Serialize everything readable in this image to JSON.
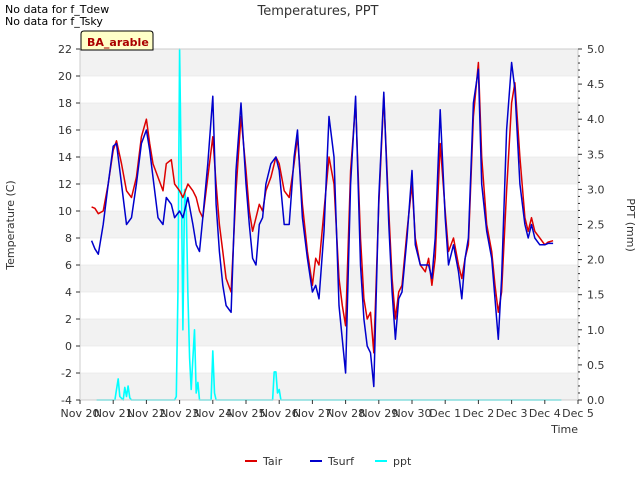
{
  "notes": [
    "No data for f_Tdew",
    "No data for f_Tsky"
  ],
  "chart_data": {
    "type": "line",
    "title": "Temperatures, PPT",
    "xlabel": "Time",
    "ylabel": "Temperature (C)",
    "y2label": "PPT (mm)",
    "site_label": "BA_arable",
    "xlim": [
      0,
      15
    ],
    "ylim": [
      -4,
      22
    ],
    "y2lim": [
      0,
      5
    ],
    "x_ticks": [
      "Nov 20",
      "Nov 21",
      "Nov 22",
      "Nov 23",
      "Nov 24",
      "Nov 25",
      "Nov 26",
      "Nov 27",
      "Nov 28",
      "Nov 29",
      "Nov 30",
      "Dec 1",
      "Dec 2",
      "Dec 3",
      "Dec 4",
      "Dec 5"
    ],
    "y_ticks": [
      -4,
      -2,
      0,
      2,
      4,
      6,
      8,
      10,
      12,
      14,
      16,
      18,
      20,
      22
    ],
    "y2_ticks": [
      "0.0",
      "0.5",
      "1.0",
      "1.5",
      "2.0",
      "2.5",
      "3.0",
      "3.5",
      "4.0",
      "4.5",
      "5.0"
    ],
    "legend": "bottom-center",
    "grid": "horizontal bands",
    "series": [
      {
        "name": "Tair",
        "color": "#dd0000",
        "axis": "left",
        "x": [
          0.35,
          0.45,
          0.55,
          0.7,
          0.85,
          1.0,
          1.1,
          1.25,
          1.4,
          1.55,
          1.7,
          1.85,
          2.0,
          2.1,
          2.2,
          2.35,
          2.5,
          2.6,
          2.75,
          2.85,
          3.0,
          3.1,
          3.25,
          3.4,
          3.5,
          3.6,
          3.7,
          3.85,
          4.0,
          4.1,
          4.2,
          4.3,
          4.4,
          4.55,
          4.7,
          4.85,
          5.0,
          5.1,
          5.2,
          5.3,
          5.4,
          5.5,
          5.6,
          5.75,
          5.9,
          6.0,
          6.15,
          6.3,
          6.45,
          6.55,
          6.7,
          6.85,
          7.0,
          7.1,
          7.2,
          7.35,
          7.5,
          7.65,
          7.8,
          7.9,
          8.0,
          8.15,
          8.3,
          8.45,
          8.55,
          8.65,
          8.75,
          8.85,
          9.0,
          9.15,
          9.3,
          9.4,
          9.5,
          9.6,
          9.7,
          9.85,
          10.0,
          10.1,
          10.25,
          10.4,
          10.5,
          10.6,
          10.7,
          10.85,
          11.0,
          11.1,
          11.25,
          11.4,
          11.5,
          11.6,
          11.7,
          11.85,
          12.0,
          12.1,
          12.25,
          12.4,
          12.5,
          12.6,
          12.7,
          12.85,
          13.0,
          13.1,
          13.25,
          13.4,
          13.5,
          13.6,
          13.7,
          13.85,
          14.0,
          14.1,
          14.25
        ],
        "y": [
          10.3,
          10.2,
          9.8,
          10.0,
          12.0,
          14.5,
          15.2,
          13.5,
          11.5,
          11.0,
          12.5,
          15.5,
          16.8,
          15.0,
          13.5,
          12.5,
          11.5,
          13.5,
          13.8,
          12.0,
          11.5,
          11.0,
          12.0,
          11.5,
          11.0,
          10.0,
          9.5,
          12.5,
          15.5,
          12.0,
          9.0,
          7.0,
          5.0,
          4.0,
          11.5,
          17.0,
          13.0,
          10.0,
          8.5,
          9.5,
          10.5,
          10.0,
          11.5,
          12.5,
          14.0,
          13.5,
          11.5,
          11.0,
          13.5,
          15.5,
          10.5,
          7.0,
          4.5,
          6.5,
          6.0,
          10.0,
          14.0,
          12.0,
          5.0,
          3.0,
          1.5,
          13.0,
          18.0,
          8.0,
          3.5,
          2.0,
          2.5,
          -0.5,
          10.5,
          18.5,
          10.0,
          5.0,
          2.0,
          4.0,
          4.5,
          8.5,
          12.0,
          8.0,
          6.0,
          5.5,
          6.5,
          4.5,
          6.5,
          15.0,
          10.0,
          7.0,
          8.0,
          6.0,
          5.0,
          6.5,
          7.5,
          17.0,
          21.0,
          14.0,
          9.0,
          7.0,
          4.5,
          2.5,
          4.0,
          11.5,
          18.0,
          19.5,
          14.0,
          9.5,
          8.5,
          9.5,
          8.5,
          8.0,
          7.5,
          7.7,
          7.8
        ]
      },
      {
        "name": "Tsurf",
        "color": "#0000cc",
        "axis": "left",
        "x": [
          0.35,
          0.45,
          0.55,
          0.7,
          0.85,
          1.0,
          1.1,
          1.25,
          1.4,
          1.55,
          1.7,
          1.85,
          2.0,
          2.1,
          2.2,
          2.35,
          2.5,
          2.6,
          2.75,
          2.85,
          3.0,
          3.1,
          3.25,
          3.4,
          3.5,
          3.6,
          3.7,
          3.85,
          4.0,
          4.1,
          4.2,
          4.3,
          4.4,
          4.55,
          4.7,
          4.85,
          5.0,
          5.1,
          5.2,
          5.3,
          5.4,
          5.5,
          5.6,
          5.75,
          5.9,
          6.0,
          6.15,
          6.3,
          6.45,
          6.55,
          6.7,
          6.85,
          7.0,
          7.1,
          7.2,
          7.35,
          7.5,
          7.65,
          7.8,
          7.9,
          8.0,
          8.15,
          8.3,
          8.45,
          8.55,
          8.65,
          8.75,
          8.85,
          9.0,
          9.15,
          9.3,
          9.4,
          9.5,
          9.6,
          9.7,
          9.85,
          10.0,
          10.1,
          10.25,
          10.4,
          10.5,
          10.6,
          10.7,
          10.85,
          11.0,
          11.1,
          11.25,
          11.4,
          11.5,
          11.6,
          11.7,
          11.85,
          12.0,
          12.1,
          12.25,
          12.4,
          12.5,
          12.6,
          12.7,
          12.85,
          13.0,
          13.1,
          13.25,
          13.4,
          13.5,
          13.6,
          13.7,
          13.85,
          14.0,
          14.1,
          14.25
        ],
        "y": [
          7.8,
          7.2,
          6.8,
          9.0,
          12.0,
          14.8,
          15.0,
          12.0,
          9.0,
          9.5,
          12.0,
          15.0,
          16.0,
          14.5,
          12.5,
          9.5,
          9.0,
          11.0,
          10.5,
          9.5,
          10.0,
          9.5,
          11.0,
          9.0,
          7.5,
          7.0,
          9.5,
          13.5,
          18.5,
          10.5,
          7.0,
          4.5,
          3.0,
          2.5,
          13.0,
          18.0,
          12.0,
          9.0,
          6.5,
          6.0,
          9.0,
          9.5,
          12.0,
          13.5,
          14.0,
          13.0,
          9.0,
          9.0,
          14.0,
          16.0,
          9.5,
          6.5,
          4.0,
          4.5,
          3.5,
          8.5,
          17.0,
          14.0,
          3.0,
          0.5,
          -2.0,
          12.0,
          18.5,
          6.0,
          2.0,
          0.0,
          -0.5,
          -3.0,
          11.0,
          18.8,
          9.0,
          4.0,
          0.5,
          3.5,
          4.0,
          8.0,
          13.0,
          7.5,
          6.0,
          6.0,
          6.0,
          5.0,
          8.0,
          17.5,
          9.5,
          6.0,
          7.5,
          5.5,
          3.5,
          6.5,
          8.0,
          18.0,
          20.5,
          12.0,
          8.5,
          6.5,
          3.5,
          0.5,
          5.0,
          16.0,
          21.0,
          19.0,
          12.0,
          9.0,
          8.0,
          9.0,
          8.0,
          7.5,
          7.5,
          7.6,
          7.6
        ]
      },
      {
        "name": "ppt",
        "color": "#00ffff",
        "axis": "right",
        "x": [
          0.5,
          1.0,
          1.05,
          1.1,
          1.15,
          1.2,
          1.3,
          1.35,
          1.4,
          1.45,
          1.5,
          1.55,
          1.6,
          1.65,
          1.7,
          1.75,
          2.8,
          2.85,
          2.9,
          2.95,
          3.0,
          3.05,
          3.1,
          3.15,
          3.2,
          3.25,
          3.3,
          3.35,
          3.4,
          3.45,
          3.5,
          3.55,
          3.6,
          3.65,
          3.7,
          3.8,
          3.9,
          3.95,
          4.0,
          4.05,
          4.1,
          4.15,
          4.2,
          4.3,
          5.7,
          5.75,
          5.8,
          5.85,
          5.9,
          5.95,
          6.0,
          6.05,
          6.1,
          6.3,
          14.5
        ],
        "y": [
          0,
          0,
          0,
          0.15,
          0.3,
          0.05,
          0,
          0.18,
          0.05,
          0.2,
          0.03,
          0,
          0,
          0,
          0,
          0,
          0,
          0,
          0.05,
          1.5,
          5.0,
          3.2,
          1.0,
          3.0,
          2.8,
          1.5,
          0.6,
          0.15,
          0.6,
          1.0,
          0.1,
          0.25,
          0,
          0,
          0,
          0,
          0,
          0,
          0.7,
          0.1,
          0,
          0,
          0,
          0,
          0,
          0,
          0,
          0.4,
          0.4,
          0.1,
          0.15,
          0,
          0,
          0,
          0
        ]
      }
    ]
  }
}
